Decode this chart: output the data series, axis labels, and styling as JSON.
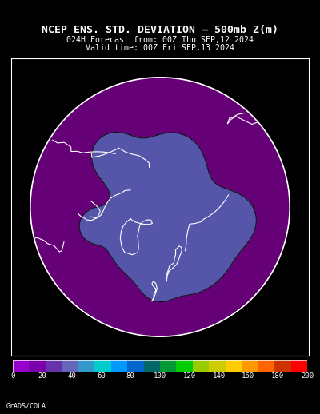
{
  "title_line1": "NCEP ENS. STD. DEVIATION – 500mb Z(m)",
  "title_line2": "024H Forecast from: 00Z Thu SEP,12 2024",
  "title_line3": "Valid time: 00Z Fri SEP,13 2024",
  "background_color": "#000000",
  "map_bg_color": "#990099",
  "border_color": "#ffffff",
  "grid_color": "#aaaaaa",
  "contour_color1": "#660077",
  "contour_color2": "#5555aa",
  "contour_line_color": "#111111",
  "coast_color": "#ffffff",
  "cb_colors": [
    "#9900cc",
    "#7a00aa",
    "#6633aa",
    "#6666bb",
    "#3399cc",
    "#00cccc",
    "#0099ff",
    "#0066cc",
    "#006666",
    "#009933",
    "#00cc00",
    "#99cc00",
    "#cccc00",
    "#ffcc00",
    "#ff9900",
    "#ff6600",
    "#cc3300",
    "#ff0000"
  ],
  "cb_tick_vals": [
    0,
    20,
    40,
    60,
    80,
    100,
    120,
    140,
    160,
    180,
    200
  ],
  "footer_text": "GrADS/COLA",
  "fig_width": 4.0,
  "fig_height": 5.18
}
